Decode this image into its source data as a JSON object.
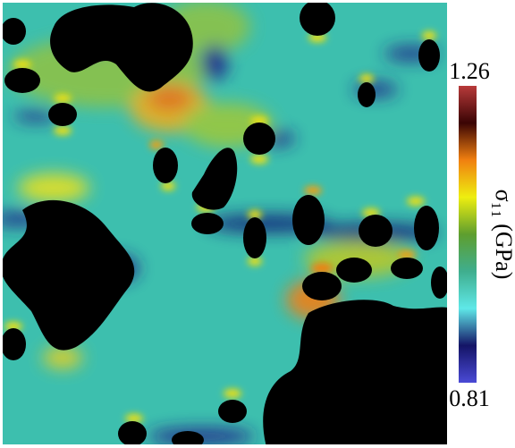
{
  "chart_data": {
    "type": "colorbar",
    "label": "σ₁₁ (GPa)",
    "clim": [
      0.81,
      1.26
    ],
    "ticks": [
      0.81,
      1.26
    ],
    "colormap": [
      "#4a4ad6",
      "#141466",
      "#5fe8e8",
      "#3fae8e",
      "#5e9e2e",
      "#eeee10",
      "#f08010",
      "#3a0404",
      "#b83a3a"
    ]
  }
}
